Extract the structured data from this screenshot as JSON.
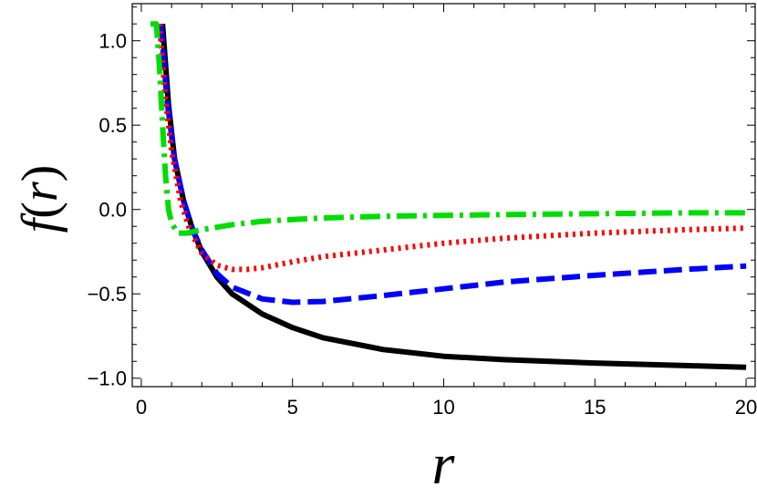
{
  "chart_data": {
    "type": "line",
    "title": "",
    "xlabel": "r",
    "ylabel_parts": {
      "func": "f",
      "open": "(",
      "var": "r",
      "close": ")"
    },
    "xlim": [
      -0.3,
      20.3
    ],
    "ylim": [
      -1.05,
      1.22
    ],
    "x_ticks": [
      {
        "value": 0,
        "label": "0"
      },
      {
        "value": 5,
        "label": "5"
      },
      {
        "value": 10,
        "label": "10"
      },
      {
        "value": 15,
        "label": "15"
      },
      {
        "value": 20,
        "label": "20"
      }
    ],
    "y_ticks": [
      {
        "value": 1.0,
        "label": "1.0"
      },
      {
        "value": 0.5,
        "label": "0.5"
      },
      {
        "value": 0.0,
        "label": "0.0"
      },
      {
        "value": -0.5,
        "label": "−0.5"
      },
      {
        "value": -1.0,
        "label": "−1.0"
      }
    ],
    "grid": false,
    "series": [
      {
        "color": "#000000",
        "style": "solid",
        "x": [
          0.7,
          0.9,
          1.1,
          1.4,
          1.7,
          2.0,
          2.5,
          3.0,
          4.0,
          5.0,
          6.0,
          8.0,
          10.0,
          12.0,
          15.0,
          18.0,
          20.0
        ],
        "y": [
          1.1,
          0.62,
          0.3,
          0.05,
          -0.12,
          -0.25,
          -0.4,
          -0.5,
          -0.62,
          -0.7,
          -0.76,
          -0.83,
          -0.87,
          -0.89,
          -0.91,
          -0.925,
          -0.935
        ]
      },
      {
        "color": "#0000ff",
        "style": "dashed",
        "x": [
          0.65,
          0.85,
          1.1,
          1.4,
          1.7,
          2.0,
          2.5,
          3.0,
          4.0,
          5.0,
          6.0,
          8.0,
          10.0,
          12.0,
          15.0,
          18.0,
          20.0
        ],
        "y": [
          1.1,
          0.65,
          0.3,
          0.05,
          -0.12,
          -0.24,
          -0.38,
          -0.46,
          -0.53,
          -0.55,
          -0.545,
          -0.51,
          -0.47,
          -0.43,
          -0.39,
          -0.355,
          -0.335
        ]
      },
      {
        "color": "#ff0000",
        "style": "dotted",
        "x": [
          0.6,
          0.8,
          1.0,
          1.3,
          1.6,
          2.0,
          2.5,
          3.0,
          3.5,
          4.0,
          5.0,
          6.0,
          8.0,
          10.0,
          12.0,
          15.0,
          18.0,
          20.0
        ],
        "y": [
          1.1,
          0.65,
          0.35,
          0.05,
          -0.12,
          -0.26,
          -0.33,
          -0.355,
          -0.355,
          -0.345,
          -0.31,
          -0.28,
          -0.24,
          -0.2,
          -0.17,
          -0.14,
          -0.12,
          -0.11
        ]
      },
      {
        "color": "#00dd00",
        "style": "dashdot",
        "x": [
          0.3,
          0.5,
          0.6,
          0.7,
          0.8,
          0.9,
          1.0,
          1.2,
          1.5,
          2.0,
          3.0,
          4.0,
          5.0,
          6.0,
          8.0,
          10.0,
          12.0,
          15.0,
          18.0,
          20.0
        ],
        "y": [
          1.1,
          1.1,
          0.85,
          0.5,
          0.2,
          0.0,
          -0.08,
          -0.14,
          -0.14,
          -0.12,
          -0.09,
          -0.07,
          -0.06,
          -0.05,
          -0.04,
          -0.035,
          -0.03,
          -0.025,
          -0.02,
          -0.02
        ]
      }
    ]
  }
}
